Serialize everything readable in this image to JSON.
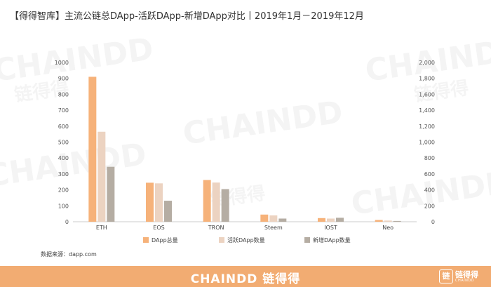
{
  "title": "【得得智库】主流公链总DApp-活跃DApp-新增DApp对比丨2019年1月－2019年12月",
  "source": "数据来源：dapp.com",
  "watermark": {
    "brand": "CHAINDD",
    "cn": "链得得"
  },
  "footer": {
    "brand": "CHAINDD 链得得",
    "logo_cn": "链得得",
    "logo_en": "CHAINDD"
  },
  "chart_data": {
    "type": "bar",
    "categories": [
      "ETH",
      "EOS",
      "TRON",
      "Steem",
      "IOST",
      "Neo"
    ],
    "series": [
      {
        "name": "DApp总量",
        "values": [
          910,
          245,
          262,
          45,
          23,
          11
        ],
        "color": "#f6b27a",
        "axis": "left"
      },
      {
        "name": "活跃DApp数量",
        "values": [
          1130,
          482,
          492,
          80,
          40,
          15
        ],
        "color": "#ecd3c1",
        "axis": "right"
      },
      {
        "name": "新增DApp数量",
        "values": [
          345,
          132,
          205,
          20,
          25,
          5
        ],
        "color": "#b5ada3",
        "axis": "left"
      }
    ],
    "ylim_left": [
      0,
      1000
    ],
    "yticks_left": [
      "0",
      "100",
      "200",
      "300",
      "400",
      "500",
      "600",
      "700",
      "800",
      "900",
      "1000"
    ],
    "ylim_right": [
      0,
      2000
    ],
    "yticks_right": [
      "0",
      "200",
      "400",
      "600",
      "800",
      "1,000",
      "1,200",
      "1,400",
      "1,600",
      "1,800",
      "2,000"
    ],
    "grid": false,
    "legend_position": "bottom"
  }
}
